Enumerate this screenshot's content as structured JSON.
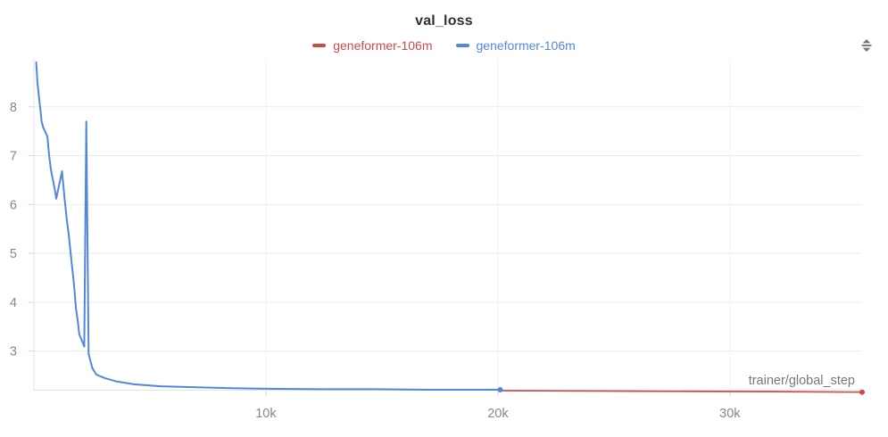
{
  "panel": {
    "title": "val_loss"
  },
  "icons": [
    {
      "name": "vertical-resize-icon",
      "glyph": "⇕",
      "color": "#767676"
    }
  ],
  "colors": {
    "title_text": "#2b3138",
    "run_red": "#cb4b4b",
    "run_blue": "#5387dd",
    "grid_horizontal": "#eaebed",
    "grid_vertical": "#f2f2f4",
    "axis_border": "#e2e3e5",
    "tick_mark": "#d6d7d9",
    "tick_label": "#85878b",
    "axis_label": "#76787b",
    "background": "#ffffff"
  },
  "chart_data": {
    "type": "line",
    "title": "val_loss",
    "xlabel": "trainer/global_step",
    "ylabel": "",
    "xlim": [
      0,
      35700
    ],
    "ylim": [
      2.2,
      9.0
    ],
    "grid": true,
    "legend_position": "top-center",
    "x_ticks": [
      {
        "value": 10000,
        "label": "10k"
      },
      {
        "value": 20000,
        "label": "20k"
      },
      {
        "value": 30000,
        "label": "30k"
      }
    ],
    "y_ticks": [
      {
        "value": 3,
        "label": "3"
      },
      {
        "value": 4,
        "label": "4"
      },
      {
        "value": 5,
        "label": "5"
      },
      {
        "value": 6,
        "label": "6"
      },
      {
        "value": 7,
        "label": "7"
      },
      {
        "value": 8,
        "label": "8"
      }
    ],
    "series": [
      {
        "name": "geneformer-106m",
        "color": "#cb4b4b",
        "end_marker": true,
        "points": [
          [
            20100,
            2.19
          ],
          [
            23000,
            2.185
          ],
          [
            26000,
            2.18
          ],
          [
            29000,
            2.175
          ],
          [
            32000,
            2.17
          ],
          [
            35700,
            2.16
          ]
        ]
      },
      {
        "name": "geneformer-106m",
        "color": "#5387dd",
        "end_marker": true,
        "points": [
          [
            100,
            8.91
          ],
          [
            150,
            8.51
          ],
          [
            230,
            8.14
          ],
          [
            290,
            7.91
          ],
          [
            330,
            7.7
          ],
          [
            400,
            7.58
          ],
          [
            580,
            7.39
          ],
          [
            650,
            7.03
          ],
          [
            730,
            6.72
          ],
          [
            920,
            6.26
          ],
          [
            960,
            6.12
          ],
          [
            1210,
            6.68
          ],
          [
            1310,
            6.17
          ],
          [
            1420,
            5.68
          ],
          [
            1500,
            5.39
          ],
          [
            1620,
            4.84
          ],
          [
            1730,
            4.35
          ],
          [
            1810,
            3.89
          ],
          [
            1890,
            3.62
          ],
          [
            1960,
            3.34
          ],
          [
            2080,
            3.2
          ],
          [
            2170,
            3.09
          ],
          [
            2260,
            7.7
          ],
          [
            2360,
            2.94
          ],
          [
            2420,
            2.83
          ],
          [
            2520,
            2.65
          ],
          [
            2690,
            2.52
          ],
          [
            3040,
            2.45
          ],
          [
            3540,
            2.38
          ],
          [
            4310,
            2.32
          ],
          [
            5460,
            2.28
          ],
          [
            7000,
            2.26
          ],
          [
            8540,
            2.24
          ],
          [
            10000,
            2.23
          ],
          [
            12400,
            2.22
          ],
          [
            14700,
            2.22
          ],
          [
            17000,
            2.21
          ],
          [
            18900,
            2.21
          ],
          [
            20100,
            2.21
          ]
        ]
      }
    ]
  }
}
